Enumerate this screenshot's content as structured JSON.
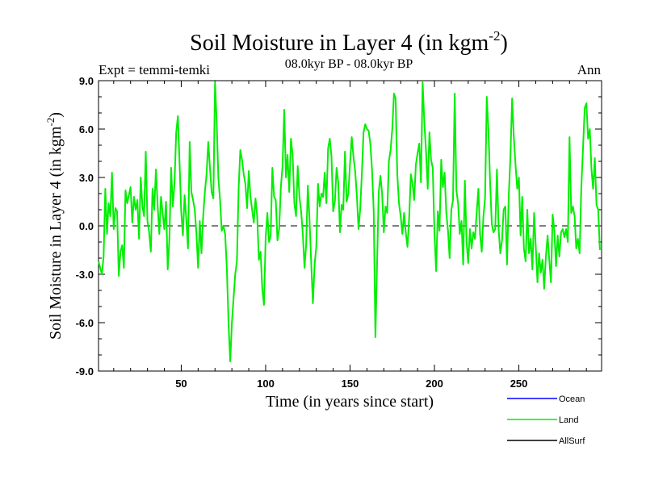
{
  "chart_data": {
    "type": "line",
    "title": "Soil Moisture in Layer 4 (in kgm",
    "title_superscript": "-2",
    "title_suffix": ")",
    "subtitle": "08.0kyr BP - 08.0kyr BP",
    "left_label": "Expt = temmi-temki",
    "right_label": "Ann",
    "xlabel": "Time (in years since start)",
    "ylabel": "Soil Moisture in Layer 4 (in kgm",
    "ylabel_superscript": "-2",
    "ylabel_suffix": ")",
    "xlim": [
      1,
      299
    ],
    "ylim": [
      -9.0,
      9.0
    ],
    "x_ticks": [
      50,
      100,
      150,
      200,
      250
    ],
    "x_tick_labels": [
      "50",
      "100",
      "150",
      "200",
      "250"
    ],
    "y_ticks": [
      -9.0,
      -6.0,
      -3.0,
      0.0,
      3.0,
      6.0,
      9.0
    ],
    "y_tick_labels": [
      "-9.0",
      "-6.0",
      "-3.0",
      "0.0",
      "3.0",
      "6.0",
      "9.0"
    ],
    "zero_line": true,
    "series": [
      {
        "name": "Land",
        "color": "#00ee00",
        "x_start": 1,
        "x_step": 1,
        "values": [
          -2.2,
          -2.6,
          -3.0,
          -1.9,
          2.3,
          -0.5,
          1.4,
          0.6,
          3.3,
          -0.2,
          1.1,
          0.9,
          -3.1,
          -1.6,
          -1.2,
          -2.6,
          2.2,
          1.4,
          1.9,
          2.4,
          0.2,
          1.8,
          1.0,
          1.6,
          -0.8,
          3.0,
          1.2,
          0.6,
          4.6,
          0.3,
          -0.4,
          -1.6,
          2.3,
          1.0,
          3.5,
          1.3,
          -0.5,
          1.8,
          0.8,
          -0.2,
          1.5,
          -2.7,
          -0.8,
          3.6,
          1.2,
          2.6,
          5.8,
          6.8,
          4.0,
          0.9,
          -0.6,
          1.9,
          0.4,
          -1.4,
          5.2,
          2.1,
          1.6,
          1.0,
          -0.5,
          -2.6,
          0.3,
          -1.7,
          0.6,
          2.1,
          3.2,
          5.2,
          3.6,
          2.1,
          1.7,
          8.9,
          6.5,
          3.0,
          1.6,
          -0.3,
          0.0,
          -0.5,
          -2.6,
          -6.0,
          -8.4,
          -6.0,
          -4.5,
          -3.0,
          -2.2,
          2.3,
          4.7,
          4.1,
          3.2,
          2.6,
          1.1,
          3.4,
          1.8,
          1.0,
          0.2,
          1.7,
          0.6,
          -2.1,
          -1.6,
          -3.9,
          -4.9,
          -0.7,
          0.8,
          -1.0,
          -0.6,
          3.6,
          1.8,
          1.6,
          -0.9,
          -0.2,
          2.4,
          3.7,
          7.2,
          3.0,
          4.4,
          2.1,
          5.4,
          4.4,
          1.4,
          0.6,
          3.7,
          1.8,
          0.9,
          -0.5,
          -2.6,
          -1.2,
          2.5,
          0.4,
          -2.3,
          -4.8,
          -2.4,
          -1.3,
          2.6,
          1.2,
          2.0,
          1.8,
          3.3,
          1.4,
          4.8,
          5.4,
          4.3,
          0.9,
          1.5,
          3.6,
          2.7,
          -0.4,
          1.3,
          1.0,
          4.6,
          1.5,
          2.0,
          3.9,
          5.5,
          4.3,
          3.4,
          1.9,
          -0.2,
          1.0,
          3.2,
          5.8,
          6.3,
          6.0,
          5.9,
          5.1,
          3.5,
          0.9,
          -6.9,
          -2.5,
          2.1,
          3.1,
          2.0,
          -0.4,
          1.2,
          0.8,
          4.0,
          4.7,
          6.0,
          8.2,
          7.9,
          3.2,
          1.4,
          0.6,
          -0.5,
          0.8,
          -0.4,
          -1.3,
          0.5,
          3.2,
          2.6,
          1.6,
          3.8,
          4.5,
          5.1,
          2.7,
          8.9,
          6.4,
          4.6,
          2.3,
          5.8,
          4.1,
          3.6,
          -0.4,
          -2.8,
          0.9,
          -0.3,
          4.1,
          2.4,
          3.3,
          0.8,
          -0.3,
          -2.0,
          1.0,
          1.6,
          8.2,
          2.2,
          1.4,
          -0.5,
          0.3,
          -2.4,
          2.8,
          -1.0,
          -2.3,
          -0.2,
          -1.4,
          -0.4,
          -0.8,
          0.8,
          2.3,
          -0.5,
          -1.6,
          0.6,
          1.7,
          8.0,
          5.9,
          2.6,
          0.1,
          -0.4,
          -0.2,
          3.5,
          -0.2,
          -1.7,
          -0.9,
          1.0,
          1.2,
          -2.4,
          1.8,
          4.3,
          7.9,
          5.5,
          3.8,
          2.3,
          3.0,
          -0.6,
          1.8,
          -1.4,
          -2.2,
          1.0,
          -1.7,
          -0.8,
          -2.7,
          0.8,
          -1.3,
          -3.5,
          -1.7,
          -2.9,
          -2.1,
          -3.9,
          -1.9,
          -0.6,
          -2.1,
          -3.5,
          0.7,
          -0.3,
          -2.5,
          -0.6,
          -1.9,
          -0.4,
          -0.2,
          -0.7,
          -0.2,
          -1.0,
          5.5,
          0.8,
          1.2,
          0.6,
          -1.4,
          -0.8,
          -1.7,
          2.4,
          4.8,
          7.3,
          7.6,
          5.4,
          6.0,
          3.5,
          2.3,
          4.2,
          1.3,
          1.0,
          -1.5
        ]
      }
    ],
    "legend": {
      "placement": "bottom-right",
      "entries": [
        {
          "label": "Ocean",
          "color": "#0000ff"
        },
        {
          "label": "Land",
          "color": "#00ee00"
        },
        {
          "label": "AllSurf",
          "color": "#000000"
        }
      ]
    }
  }
}
